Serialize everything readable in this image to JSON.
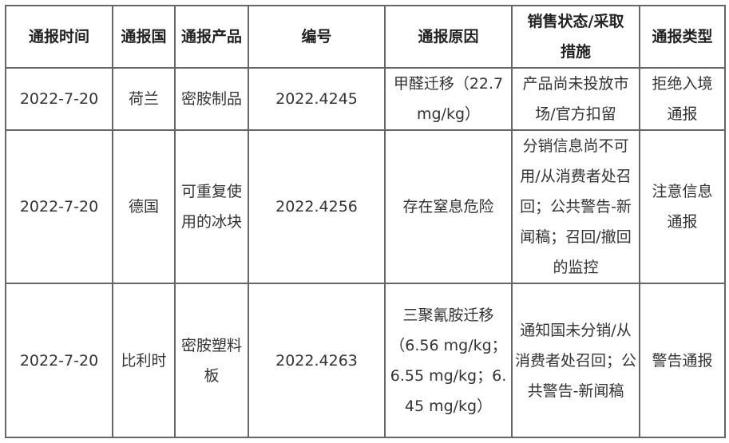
{
  "headers": [
    "通报时间",
    "通报国",
    "通报产品",
    "编号",
    "通报原因",
    "销售状态/采取措施",
    "通报类型"
  ],
  "rows": [
    [
      "2022-7-20",
      "荷兰",
      "密胺制品",
      "2022.4245",
      "甲醛迁移（22.7 mg/kg）",
      "产品尚未投放市场/官方扣留",
      "拒绝入境通报"
    ],
    [
      "2022-7-20",
      "德国",
      "可重复使用的冰块",
      "2022.4256",
      "存在窒息危险",
      "分销信息尚不可用/从消费者处召回；公共警告-新闻稿；召回/撤回的监控",
      "注意信息通报"
    ],
    [
      "2022-7-20",
      "比利时",
      "密胺塑料板",
      "2022.4263",
      "三聚氰胺迁移（6.56 mg/kg；6.55 mg/kg；6.45 mg/kg）",
      "通知国未分销/从消费者处召回；公共警告-新闻稿",
      "警告通报"
    ]
  ]
}
